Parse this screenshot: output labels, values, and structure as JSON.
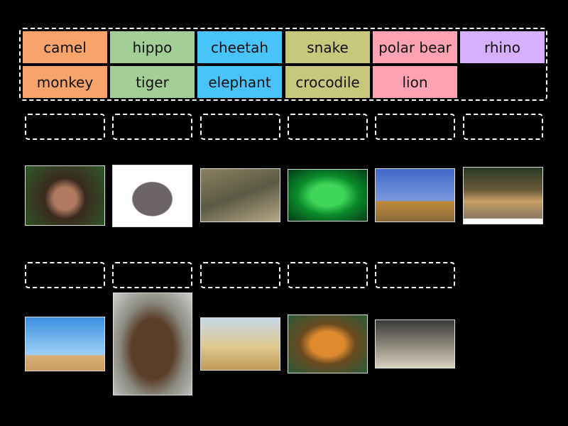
{
  "tiles": [
    {
      "label": "camel",
      "color": "#f7a46c"
    },
    {
      "label": "hippo",
      "color": "#a3cf97"
    },
    {
      "label": "cheetah",
      "color": "#48c4fb"
    },
    {
      "label": "snake",
      "color": "#c8c87c"
    },
    {
      "label": "polar bear",
      "color": "#fda2b2"
    },
    {
      "label": "rhino",
      "color": "#d7b0fd"
    },
    {
      "label": "monkey",
      "color": "#f7a46c"
    },
    {
      "label": "tiger",
      "color": "#a3cf97"
    },
    {
      "label": "elephant",
      "color": "#48c4fb"
    },
    {
      "label": "crocodile",
      "color": "#c8c87c"
    },
    {
      "label": "lion",
      "color": "#fda2b2"
    }
  ],
  "images": [
    "monkey-photo",
    "hippo-photo",
    "crocodile-photo",
    "snake-photo",
    "lion-photo",
    "cheetah-photo",
    "camel-photo",
    "bear-photo",
    "elephant-photo",
    "tiger-photo",
    "rhino-photo"
  ],
  "drop_zone_count": 11
}
